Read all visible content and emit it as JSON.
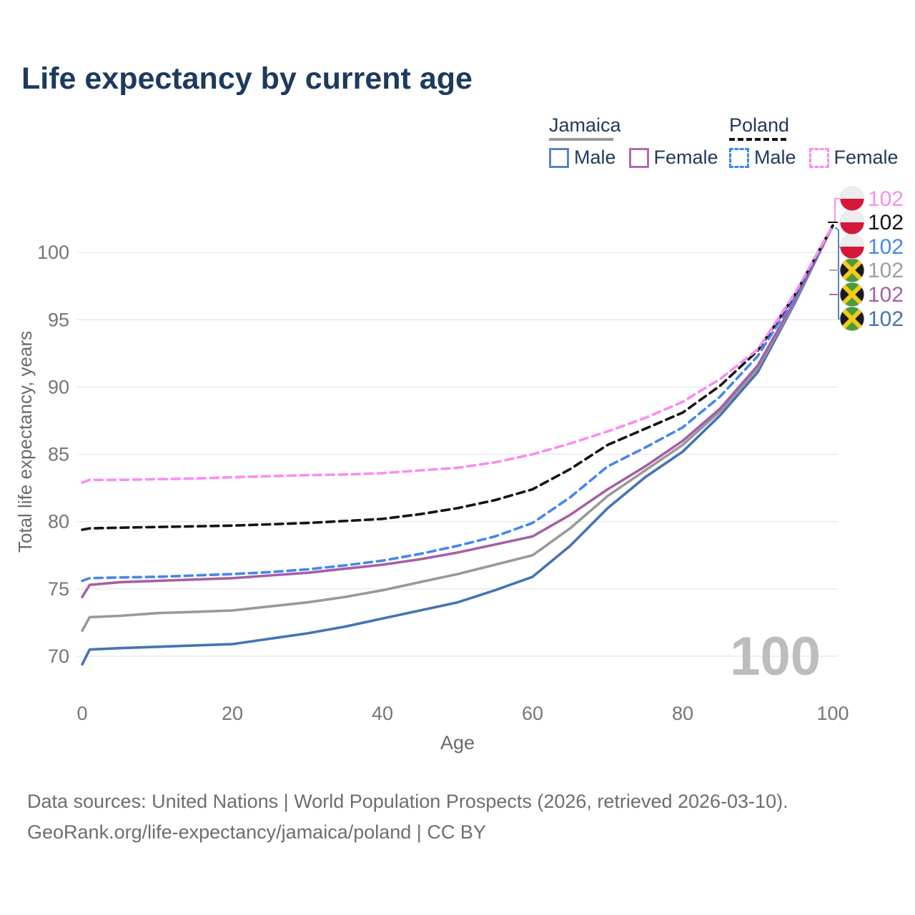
{
  "title": "Life expectancy by current age",
  "legend": {
    "jamaica": {
      "label": "Jamaica",
      "male_label": "Male",
      "female_label": "Female"
    },
    "poland": {
      "label": "Poland",
      "male_label": "Male",
      "female_label": "Female"
    }
  },
  "watermark": "100",
  "footer": {
    "line1": "Data sources: United Nations | World Population Prospects (2026, retrieved 2026-03-10).",
    "line2": "GeoRank.org/life-expectancy/jamaica/poland | CC BY"
  },
  "colors": {
    "title_navy": "#1d3a5e",
    "legend_text": "#22395c",
    "jamaica_male": "#4473b3",
    "jamaica_female": "#a65fa5",
    "jamaica_both": "#999999",
    "poland_male": "#4486ef",
    "poland_female": "#fa8cf3",
    "poland_both": "#141414",
    "gridline": "#eaeaea",
    "tick_text": "#757575",
    "axis_title_text": "#6a6a6a",
    "watermark_gray": "#bdbdbd"
  },
  "chart_data": {
    "type": "line",
    "title": "Life expectancy by current age",
    "xlabel": "Age",
    "ylabel": "Total life expectancy, years",
    "xlim": [
      0,
      100
    ],
    "ylim": [
      69,
      102.5
    ],
    "xticks": [
      0,
      20,
      40,
      60,
      80,
      100
    ],
    "yticks": [
      70,
      75,
      80,
      85,
      90,
      95,
      100
    ],
    "grid": "horizontal",
    "legend_position": "top-right",
    "x": [
      0,
      1,
      5,
      10,
      15,
      20,
      25,
      30,
      35,
      40,
      45,
      50,
      55,
      60,
      65,
      70,
      75,
      80,
      85,
      90,
      95,
      100
    ],
    "series": [
      {
        "name": "Jamaica Male",
        "country": "Jamaica",
        "sex": "male",
        "dashed": false,
        "color": "#4473b3",
        "flag": "jamaica",
        "end_label": "102",
        "label_row": 5,
        "values": [
          69.4,
          70.5,
          70.6,
          70.7,
          70.8,
          70.9,
          71.3,
          71.7,
          72.2,
          72.8,
          73.4,
          74.0,
          74.9,
          75.9,
          78.2,
          81.0,
          83.3,
          85.2,
          87.9,
          91.1,
          96.3,
          102
        ]
      },
      {
        "name": "Jamaica Both sexes",
        "country": "Jamaica",
        "sex": "both",
        "dashed": false,
        "color": "#999999",
        "flag": "jamaica",
        "end_label": "102",
        "label_row": 3,
        "values": [
          71.9,
          72.9,
          73.0,
          73.2,
          73.3,
          73.4,
          73.7,
          74.0,
          74.4,
          74.9,
          75.5,
          76.1,
          76.8,
          77.5,
          79.5,
          81.9,
          83.8,
          85.7,
          88.2,
          91.4,
          96.4,
          102
        ]
      },
      {
        "name": "Jamaica Female",
        "country": "Jamaica",
        "sex": "female",
        "dashed": false,
        "color": "#a65fa5",
        "flag": "jamaica",
        "end_label": "102",
        "label_row": 4,
        "values": [
          74.4,
          75.3,
          75.5,
          75.6,
          75.7,
          75.8,
          76.0,
          76.2,
          76.5,
          76.8,
          77.2,
          77.7,
          78.3,
          78.9,
          80.5,
          82.4,
          84.1,
          86.0,
          88.4,
          91.6,
          96.5,
          102
        ]
      },
      {
        "name": "Poland Male",
        "country": "Poland",
        "sex": "male",
        "dashed": true,
        "color": "#4486ef",
        "flag": "poland",
        "end_label": "102",
        "label_row": 2,
        "values": [
          75.6,
          75.8,
          75.85,
          75.9,
          76.0,
          76.1,
          76.25,
          76.45,
          76.75,
          77.1,
          77.6,
          78.2,
          78.9,
          79.9,
          81.8,
          84.1,
          85.5,
          87.0,
          89.3,
          92.3,
          96.7,
          102
        ]
      },
      {
        "name": "Poland Both sexes",
        "country": "Poland",
        "sex": "both",
        "dashed": true,
        "color": "#141414",
        "flag": "poland",
        "end_label": "102",
        "label_row": 1,
        "values": [
          79.4,
          79.5,
          79.55,
          79.6,
          79.65,
          79.7,
          79.8,
          79.9,
          80.05,
          80.2,
          80.55,
          81.0,
          81.6,
          82.4,
          83.9,
          85.7,
          86.9,
          88.1,
          90.1,
          92.7,
          96.9,
          102
        ]
      },
      {
        "name": "Poland Female",
        "country": "Poland",
        "sex": "female",
        "dashed": true,
        "color": "#fa8cf3",
        "flag": "poland",
        "end_label": "102",
        "label_row": 0,
        "values": [
          82.9,
          83.1,
          83.1,
          83.15,
          83.2,
          83.3,
          83.37,
          83.45,
          83.5,
          83.6,
          83.8,
          84.0,
          84.4,
          85.0,
          85.8,
          86.7,
          87.7,
          88.9,
          90.6,
          92.8,
          97.0,
          102
        ]
      }
    ]
  }
}
